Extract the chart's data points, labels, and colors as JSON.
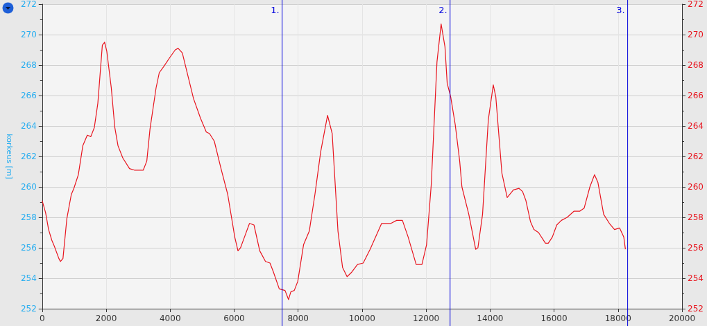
{
  "chart_data": {
    "type": "line",
    "ylabel": "korkeus [m]",
    "x": [
      0,
      107,
      200,
      300,
      380,
      520,
      570,
      650,
      770,
      910,
      990,
      1130,
      1270,
      1410,
      1520,
      1630,
      1740,
      1880,
      1950,
      2020,
      2160,
      2270,
      2370,
      2520,
      2730,
      2880,
      3160,
      3270,
      3370,
      3560,
      3660,
      3800,
      3990,
      4160,
      4250,
      4380,
      4520,
      4730,
      4950,
      5130,
      5230,
      5380,
      5590,
      5800,
      6020,
      6120,
      6200,
      6340,
      6480,
      6620,
      6800,
      6980,
      7120,
      7230,
      7410,
      7590,
      7700,
      7770,
      7880,
      7990,
      8170,
      8350,
      8525,
      8705,
      8920,
      9065,
      9245,
      9390,
      9530,
      9675,
      9855,
      10035,
      10250,
      10610,
      10900,
      11080,
      11260,
      11440,
      11690,
      11870,
      12015,
      12160,
      12340,
      12470,
      12590,
      12660,
      12770,
      12910,
      13050,
      13120,
      13335,
      13550,
      13620,
      13765,
      13945,
      14100,
      14180,
      14370,
      14535,
      14730,
      14905,
      15015,
      15120,
      15265,
      15370,
      15515,
      15730,
      15820,
      15945,
      16085,
      16230,
      16410,
      16620,
      16800,
      16940,
      17120,
      17265,
      17370,
      17550,
      17730,
      17890,
      18050,
      18180,
      18230
    ],
    "series": [
      {
        "color": "#e8141e",
        "values": [
          259.1,
          258.3,
          257.2,
          256.5,
          256.1,
          255.3,
          255.1,
          255.3,
          257.9,
          259.5,
          259.9,
          260.8,
          262.7,
          263.4,
          263.3,
          263.9,
          265.5,
          269.3,
          269.5,
          268.9,
          266.5,
          263.9,
          262.7,
          261.9,
          261.2,
          261.1,
          261.1,
          261.7,
          263.8,
          266.5,
          267.5,
          267.9,
          268.5,
          269.0,
          269.1,
          268.8,
          267.6,
          265.8,
          264.5,
          263.6,
          263.5,
          263.0,
          261.2,
          259.5,
          256.7,
          255.8,
          256.0,
          256.8,
          257.6,
          257.5,
          255.8,
          255.1,
          255.0,
          254.4,
          253.3,
          253.2,
          252.6,
          253.1,
          253.2,
          253.8,
          256.2,
          257.1,
          259.5,
          262.3,
          264.7,
          263.5,
          257.1,
          254.7,
          254.1,
          254.4,
          254.9,
          255.0,
          255.9,
          257.6,
          257.6,
          257.8,
          257.8,
          256.7,
          254.9,
          254.9,
          256.2,
          260.1,
          268.2,
          270.7,
          269.2,
          266.8,
          265.9,
          264.1,
          261.7,
          260.0,
          258.2,
          255.9,
          256.0,
          258.2,
          264.4,
          266.7,
          265.9,
          260.9,
          259.3,
          259.8,
          259.9,
          259.7,
          259.1,
          257.7,
          257.2,
          257.0,
          256.3,
          256.3,
          256.7,
          257.5,
          257.8,
          258.0,
          258.4,
          258.4,
          258.6,
          260.0,
          260.8,
          260.3,
          258.2,
          257.6,
          257.2,
          257.3,
          256.7,
          255.9
        ]
      }
    ],
    "xlim": [
      0,
      20000
    ],
    "xticks": [
      0,
      2000,
      4000,
      6000,
      8000,
      10000,
      12000,
      14000,
      16000,
      18000,
      20000
    ],
    "ylim": [
      252,
      272
    ],
    "yticks": [
      252,
      254,
      256,
      258,
      260,
      262,
      264,
      266,
      268,
      270,
      272
    ],
    "y2lim": [
      252,
      272
    ],
    "y2ticks": [
      252,
      254,
      256,
      258,
      260,
      262,
      264,
      266,
      268,
      270,
      272
    ],
    "ref_lines": [
      {
        "axis": "x",
        "value": 7500,
        "color": "#0000dd"
      },
      {
        "axis": "x",
        "value": 12750,
        "color": "#0000dd"
      },
      {
        "axis": "x",
        "value": 18300,
        "color": "#0000dd"
      }
    ],
    "annotations": [
      {
        "text": "1.",
        "x": 7500,
        "y": 272
      },
      {
        "text": "2.",
        "x": 12750,
        "y": 272
      },
      {
        "text": "3.",
        "x": 18300,
        "y": 272
      }
    ],
    "grid": true,
    "marker": "none",
    "line_style": "solid"
  }
}
